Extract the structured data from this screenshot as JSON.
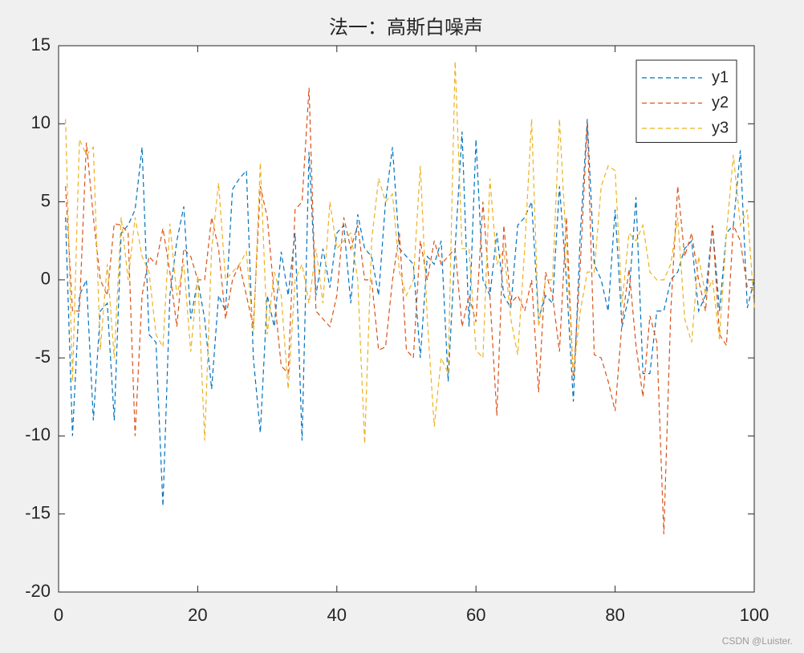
{
  "chart_data": {
    "type": "line",
    "title": "法一：高斯白噪声",
    "x": [
      1,
      2,
      3,
      4,
      5,
      6,
      7,
      8,
      9,
      10,
      11,
      12,
      13,
      14,
      15,
      16,
      17,
      18,
      19,
      20,
      21,
      22,
      23,
      24,
      25,
      26,
      27,
      28,
      29,
      30,
      31,
      32,
      33,
      34,
      35,
      36,
      37,
      38,
      39,
      40,
      41,
      42,
      43,
      44,
      45,
      46,
      47,
      48,
      49,
      50,
      51,
      52,
      53,
      54,
      55,
      56,
      57,
      58,
      59,
      60,
      61,
      62,
      63,
      64,
      65,
      66,
      67,
      68,
      69,
      70,
      71,
      72,
      73,
      74,
      75,
      76,
      77,
      78,
      79,
      80,
      81,
      82,
      83,
      84,
      85,
      86,
      87,
      88,
      89,
      90,
      91,
      92,
      93,
      94,
      95,
      96,
      97,
      98,
      99,
      100
    ],
    "series": [
      {
        "name": "y1",
        "color": "#0072BD",
        "values": [
          4,
          -10,
          -1,
          0,
          -9,
          -2,
          -1.5,
          -9,
          3,
          3.5,
          4.5,
          8.5,
          -3.5,
          -4,
          -14.5,
          -1,
          2.5,
          4.7,
          -2.5,
          0,
          -2.5,
          -7,
          -1,
          -2,
          5.8,
          6.5,
          7,
          -5,
          -9.8,
          -1,
          -3,
          1.8,
          -1,
          3,
          -10.3,
          8.2,
          -1,
          2,
          -0.5,
          3,
          3.5,
          -1.5,
          4.2,
          2,
          1.5,
          -1,
          5,
          8.5,
          2,
          1.5,
          1,
          -5,
          1.5,
          1,
          2.5,
          -6.5,
          2,
          9.5,
          -3,
          9,
          0,
          -1,
          3,
          -1,
          -1.8,
          3.5,
          4,
          5,
          -2.5,
          -1,
          -1.5,
          6,
          0,
          -7.8,
          3,
          10.3,
          1,
          0,
          -2,
          4.5,
          -3,
          -1,
          5.3,
          -6,
          -6,
          -2,
          -2,
          0,
          0.5,
          2,
          2.5,
          -2,
          -1,
          3.5,
          -2,
          3,
          3.5,
          8.3,
          -1.8,
          0
        ]
      },
      {
        "name": "y2",
        "color": "#D95319",
        "values": [
          6,
          -2,
          -2,
          8.8,
          4,
          0,
          -1,
          3.6,
          3.5,
          3,
          -10,
          -1,
          1.5,
          1,
          3.3,
          0.5,
          -3,
          2,
          1.5,
          0,
          0,
          4,
          2,
          -2.5,
          0,
          1,
          -1,
          -3,
          6,
          4,
          -1,
          -5.5,
          -6,
          4.5,
          5,
          12.3,
          -2,
          -2.5,
          -3,
          -1,
          4,
          2,
          3.5,
          0,
          0,
          -4.5,
          -4.3,
          0,
          3,
          -4.5,
          -5,
          2.5,
          0,
          2.5,
          1,
          1.5,
          2,
          -3,
          -1,
          -2.7,
          5,
          -1,
          -8.7,
          3.5,
          -1.5,
          -1,
          -2,
          0,
          -7.2,
          0.5,
          -1,
          -4.6,
          4,
          -6.5,
          1,
          10,
          -4.8,
          -5,
          -6.5,
          -8.4,
          -2.7,
          0.7,
          -4.2,
          -7.5,
          -2.3,
          -4,
          -16.3,
          -2,
          6,
          1.5,
          3,
          0,
          -2,
          3.5,
          -3.5,
          -4.2,
          3.5,
          2.5,
          -0.5,
          -0.5
        ]
      },
      {
        "name": "y3",
        "color": "#EDB120",
        "values": [
          10.3,
          -6.5,
          9,
          8,
          8.5,
          -4.5,
          1,
          -5,
          4,
          0,
          4,
          1.5,
          0.5,
          -3.5,
          -4.3,
          3.6,
          -1,
          1,
          -4.6,
          0.3,
          -10.3,
          2,
          6.2,
          0,
          0.5,
          1,
          1.8,
          -3.5,
          7.5,
          -3.5,
          0.5,
          -1,
          -7,
          0,
          1,
          -1.5,
          2,
          -1.5,
          5,
          2,
          2.5,
          3,
          0,
          -10.5,
          2.5,
          6.5,
          5,
          5.5,
          0.5,
          -1,
          0,
          7.3,
          -2.5,
          -9.4,
          -5,
          -6,
          14,
          2,
          2,
          -4.5,
          -5,
          6.5,
          1,
          2,
          -2.5,
          -4.8,
          2,
          10.3,
          -3,
          0,
          0,
          10.3,
          2,
          -6,
          -2,
          0.5,
          0.5,
          6,
          7.3,
          7,
          -1.5,
          3,
          2.5,
          3.5,
          0.5,
          0,
          0,
          1,
          4,
          -2.5,
          -4,
          1.5,
          -1,
          0,
          -3.8,
          3,
          8,
          3.5,
          4.5,
          -1.8
        ]
      }
    ],
    "xlim": [
      0,
      100
    ],
    "xticks": [
      0,
      20,
      40,
      60,
      80,
      100
    ],
    "ylim": [
      -20,
      15
    ],
    "yticks": [
      -20,
      -15,
      -10,
      -5,
      0,
      5,
      10,
      15
    ],
    "grid": false,
    "legend": "northeast",
    "line_style": "dashed"
  },
  "watermark": "CSDN @Luister."
}
